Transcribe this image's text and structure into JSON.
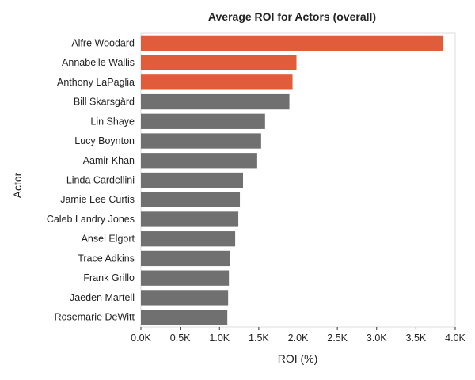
{
  "chart_data": {
    "type": "bar",
    "orientation": "horizontal",
    "title": "Average ROI for Actors (overall)",
    "xlabel": "ROI (%)",
    "ylabel": "Actor",
    "categories": [
      "Alfre Woodard",
      "Annabelle Wallis",
      "Anthony LaPaglia",
      "Bill Skarsgård",
      "Lin Shaye",
      "Lucy Boynton",
      "Aamir Khan",
      "Linda Cardellini",
      "Jamie Lee Curtis",
      "Caleb Landry Jones",
      "Ansel Elgort",
      "Trace Adkins",
      "Frank Grillo",
      "Jaeden Martell",
      "Rosemarie DeWitt"
    ],
    "values": [
      3850,
      1980,
      1930,
      1890,
      1580,
      1530,
      1480,
      1300,
      1260,
      1240,
      1200,
      1130,
      1120,
      1110,
      1100
    ],
    "highlighted": [
      0,
      1,
      2
    ],
    "xlim": [
      0,
      4000
    ],
    "xticks": [
      0,
      500,
      1000,
      1500,
      2000,
      2500,
      3000,
      3500,
      4000
    ],
    "xtick_labels": [
      "0.0K",
      "0.5K",
      "1.0K",
      "1.5K",
      "2.0K",
      "2.5K",
      "3.0K",
      "3.5K",
      "4.0K"
    ],
    "grid": false,
    "colors": {
      "highlight": "#e05c3a",
      "default": "#707070"
    }
  }
}
